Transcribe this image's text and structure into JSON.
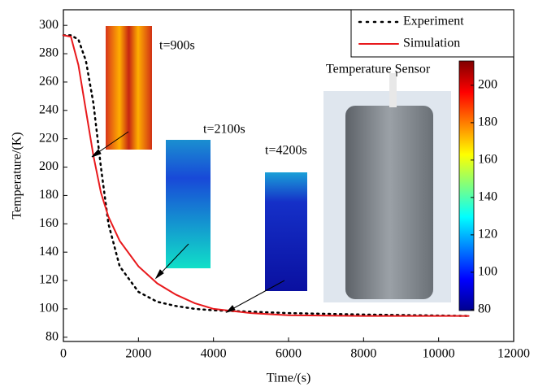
{
  "chart_data": {
    "type": "line",
    "xlabel": "Time/(s)",
    "ylabel": "Temperature/(K)",
    "x": [
      0,
      200,
      400,
      600,
      800,
      1000,
      1200,
      1500,
      2000,
      2500,
      3000,
      3500,
      4000,
      5000,
      6000,
      8000,
      10800
    ],
    "series": [
      {
        "name": "Experiment",
        "color": "#000000",
        "style": "dotted",
        "values": [
          293,
          293,
          290,
          275,
          245,
          200,
          160,
          130,
          112,
          105,
          102,
          100,
          99,
          98,
          97,
          96,
          95
        ]
      },
      {
        "name": "Simulation",
        "color": "#e8191c",
        "style": "solid",
        "values": [
          293,
          292,
          272,
          240,
          208,
          182,
          165,
          148,
          130,
          118,
          110,
          104,
          100,
          97,
          95.5,
          95,
          95
        ]
      }
    ],
    "xlim": [
      0,
      12000
    ],
    "xticks": [
      0,
      2000,
      4000,
      6000,
      8000,
      10000,
      12000
    ],
    "ylim": [
      77,
      311
    ],
    "yticks": [
      80,
      100,
      120,
      140,
      160,
      180,
      200,
      220,
      240,
      260,
      280,
      300
    ],
    "legend": "upper right",
    "annotations": [
      "t=900s",
      "t=2100s",
      "t=4200s",
      "Temperature Sensor"
    ],
    "colorbar": {
      "lim": [
        79.5,
        213
      ],
      "ticks": [
        80,
        100,
        120,
        140,
        160,
        180,
        200
      ]
    }
  }
}
